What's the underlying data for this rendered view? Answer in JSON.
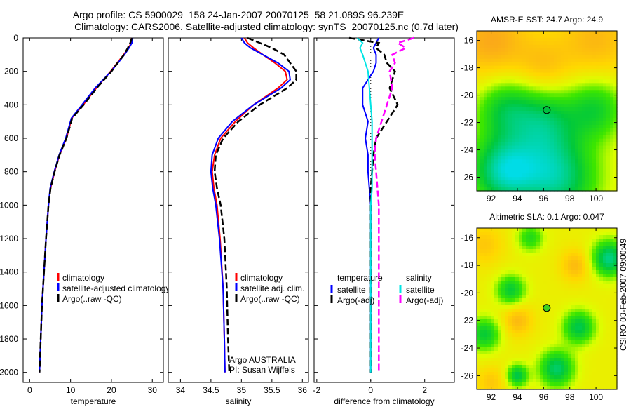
{
  "title_line1": "Argo profile: CS 5900029_158 24-Jan-2007 20070125_58 21.089S 96.239E",
  "title_line2": "Climatology: CARS2006. Satellite-adjusted climatology: synTS_20070125.nc (0.7d later)",
  "side_label": "CSIRO 03-Feb-2007 09:00:49",
  "colors": {
    "climatology": "#ff0000",
    "satellite": "#0000ff",
    "argo": "#000000",
    "sal_satellite": "#00e5e5",
    "sal_argo": "#ff00ff"
  },
  "chart_data": [
    {
      "type": "line",
      "name": "temperature-profile",
      "xlabel": "temperature",
      "ylabel": "",
      "xlim": [
        -1.6,
        32.7
      ],
      "ylim": [
        2060,
        0
      ],
      "xticks": [
        "0",
        "10",
        "20",
        "30"
      ],
      "xtick_values": [
        0,
        10,
        20,
        30
      ],
      "yticks": [
        "0",
        "200",
        "400",
        "600",
        "800",
        "1000",
        "1200",
        "1400",
        "1600",
        "1800",
        "2000"
      ],
      "ytick_values": [
        0,
        200,
        400,
        600,
        800,
        1000,
        1200,
        1400,
        1600,
        1800,
        2000
      ],
      "depth": [
        0,
        30,
        60,
        100,
        150,
        200,
        300,
        400,
        480,
        600,
        700,
        800,
        900,
        1000,
        1200,
        1400,
        1600,
        1800,
        2000
      ],
      "series": [
        {
          "name": "climatology",
          "style": "solid",
          "color": "#ff0000",
          "values": [
            24.9,
            24.8,
            24.2,
            23.0,
            21.4,
            19.8,
            16.3,
            13.1,
            10.3,
            9.0,
            7.3,
            6.1,
            5.1,
            4.6,
            4.0,
            3.5,
            3.0,
            2.7,
            2.4
          ]
        },
        {
          "name": "satellite-adjusted climatology",
          "style": "solid",
          "color": "#0000ff",
          "values": [
            25.2,
            25.0,
            24.3,
            23.2,
            21.6,
            19.9,
            16.0,
            12.8,
            10.2,
            8.8,
            7.2,
            6.0,
            5.0,
            4.6,
            4.0,
            3.5,
            3.0,
            2.7,
            2.4
          ]
        },
        {
          "name": "Argo(..raw -QC)",
          "style": "dash",
          "color": "#000000",
          "values": [
            25.0,
            24.6,
            24.0,
            23.1,
            21.5,
            20.0,
            16.4,
            13.2,
            10.4,
            9.0,
            7.3,
            6.1,
            5.1,
            4.6,
            4.0,
            3.5,
            3.0,
            2.7,
            2.4
          ]
        }
      ],
      "legend": [
        "climatology",
        "satellite-adjusted climatology",
        "Argo(..raw -QC)"
      ]
    },
    {
      "type": "line",
      "name": "salinity-profile",
      "xlabel": "salinity",
      "xlim": [
        33.8,
        36.1
      ],
      "xticks": [
        "34",
        "34.5",
        "35",
        "35.5",
        "36"
      ],
      "xtick_values": [
        34,
        34.5,
        35,
        35.5,
        36
      ],
      "depth": [
        0,
        30,
        60,
        100,
        150,
        200,
        250,
        300,
        400,
        500,
        600,
        700,
        800,
        900,
        1000,
        1200,
        1500,
        1800,
        2000
      ],
      "series": [
        {
          "name": "climatology",
          "style": "solid",
          "color": "#ff0000",
          "values": [
            35.05,
            35.1,
            35.2,
            35.35,
            35.55,
            35.72,
            35.75,
            35.6,
            35.2,
            34.9,
            34.66,
            34.56,
            34.52,
            34.55,
            34.6,
            34.65,
            34.7,
            34.72,
            34.73
          ]
        },
        {
          "name": "satellite adj. clim.",
          "style": "solid",
          "color": "#0000ff",
          "values": [
            35.0,
            35.05,
            35.15,
            35.35,
            35.6,
            35.78,
            35.8,
            35.65,
            35.2,
            34.85,
            34.62,
            34.52,
            34.5,
            34.53,
            34.58,
            34.64,
            34.7,
            34.72,
            34.73
          ]
        },
        {
          "name": "Argo(..raw -QC)",
          "style": "dash",
          "color": "#000000",
          "values": [
            35.1,
            35.3,
            35.5,
            35.7,
            35.8,
            35.9,
            35.9,
            35.75,
            35.3,
            34.95,
            34.7,
            34.58,
            34.56,
            34.6,
            34.66,
            34.72,
            34.76,
            34.78,
            34.8
          ]
        }
      ],
      "legend": [
        "climatology",
        "satellite adj. clim.",
        "Argo(..raw -QC)"
      ],
      "annotations": [
        "Argo AUSTRALIA",
        "PI: Susan Wijffels"
      ]
    },
    {
      "type": "line",
      "name": "difference-profile",
      "xlabel": "difference from climatology",
      "xlim": [
        -2.1,
        3.1
      ],
      "xticks": [
        "-2",
        "0",
        "2"
      ],
      "xtick_values": [
        -2,
        0,
        2
      ],
      "depth": [
        0,
        30,
        60,
        100,
        150,
        200,
        300,
        400,
        500,
        600,
        700,
        800,
        900,
        1000,
        1200,
        1500,
        1800,
        2000
      ],
      "series": [
        {
          "name": "temperature satellite",
          "style": "solid",
          "color": "#0000ff",
          "values": [
            0.3,
            0.2,
            0.1,
            0.2,
            0.2,
            0.1,
            -0.3,
            -0.3,
            -0.1,
            -0.2,
            -0.1,
            -0.1,
            -0.05,
            0,
            0,
            0,
            0,
            0
          ]
        },
        {
          "name": "temperature Argo(-adj)",
          "style": "dash",
          "color": "#000000",
          "values": [
            -0.8,
            0.3,
            0.2,
            0.5,
            0.6,
            0.9,
            0.7,
            1.0,
            0.6,
            0.2,
            0.1,
            0.05,
            0,
            0,
            0,
            0,
            0,
            0
          ]
        },
        {
          "name": "salinity satellite",
          "style": "solid",
          "color": "#00e5e5",
          "values": [
            -0.5,
            -0.3,
            -0.4,
            -0.3,
            -0.2,
            -0.1,
            -0.05,
            0,
            0.05,
            0.05,
            0.05,
            0.05,
            0.05,
            0,
            0,
            0,
            0,
            0
          ]
        },
        {
          "name": "salinity Argo(-adj)",
          "style": "dash",
          "color": "#ff00ff",
          "values": [
            1.6,
            1.0,
            1.3,
            0.8,
            0.9,
            0.7,
            0.8,
            0.6,
            0.4,
            0.2,
            0.15,
            0.2,
            0.25,
            0.3,
            0.3,
            0.3,
            0.3,
            0.3
          ]
        }
      ],
      "legend_headers": [
        "temperature",
        "salinity"
      ],
      "legend": [
        "satellite",
        "Argo(-adj)",
        "satellite",
        "Argo(-adj)"
      ]
    },
    {
      "type": "heatmap",
      "name": "sst-map",
      "title": "AMSR-E SST: 24.7 Argo: 24.9",
      "xlim": [
        90.9,
        101.6
      ],
      "ylim": [
        -27,
        -15.3
      ],
      "xticks": [
        "92",
        "94",
        "96",
        "98",
        "100"
      ],
      "xtick_values": [
        92,
        94,
        96,
        98,
        100
      ],
      "yticks": [
        "-16",
        "-18",
        "-20",
        "-22",
        "-24",
        "-26"
      ],
      "ytick_values": [
        -16,
        -18,
        -20,
        -22,
        -24,
        -26
      ],
      "argo_position": [
        96.239,
        -21.089
      ]
    },
    {
      "type": "heatmap",
      "name": "sla-map",
      "title": "Altimetric SLA: 0.1 Argo: 0.047",
      "xlim": [
        90.9,
        101.6
      ],
      "ylim": [
        -27,
        -15.3
      ],
      "xticks": [
        "92",
        "94",
        "96",
        "98",
        "100"
      ],
      "xtick_values": [
        92,
        94,
        96,
        98,
        100
      ],
      "yticks": [
        "-16",
        "-18",
        "-20",
        "-22",
        "-24",
        "-26"
      ],
      "ytick_values": [
        -16,
        -18,
        -20,
        -22,
        -24,
        -26
      ],
      "argo_position": [
        96.239,
        -21.089
      ]
    }
  ]
}
